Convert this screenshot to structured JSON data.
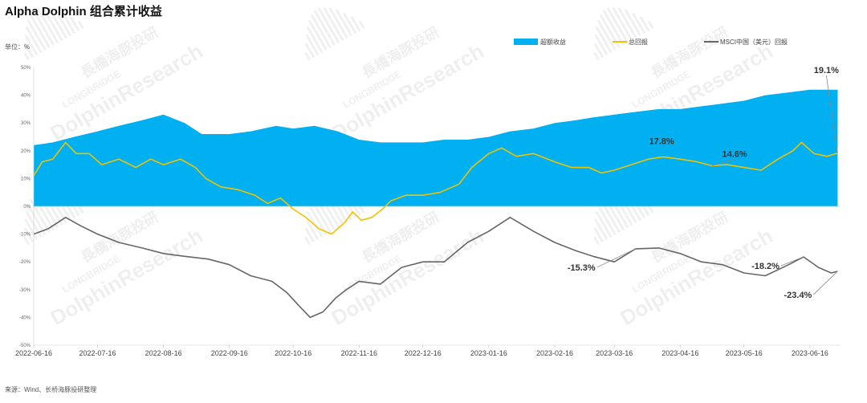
{
  "title": "Alpha Dolphin 组合累计收益",
  "unit_label": "单位：%",
  "source": "来源：Wind、长桥海豚投研整理",
  "watermark": {
    "line1": "長橋海豚投研",
    "line2": "LONGBRIDGE",
    "line3": "DolphinResearch"
  },
  "colors": {
    "excess": "#00b0f0",
    "total": "#f2c200",
    "msci": "#666666"
  },
  "chart_data": {
    "type": "area",
    "title": "Alpha Dolphin 组合累计收益",
    "ylabel": "单位：%",
    "ylim": [
      -50,
      50
    ],
    "yticks": [
      50,
      40,
      30,
      20,
      10,
      0,
      -10,
      -20,
      -30,
      -40,
      -50
    ],
    "ytick_labels": [
      "50%",
      "40%",
      "30%",
      "20%",
      "10%",
      "0%",
      "-10%",
      "-20%",
      "-30%",
      "-40%",
      "-50%"
    ],
    "x_ticks": [
      "2022-06-16",
      "2022-07-16",
      "2022-08-16",
      "2022-09-16",
      "2022-10-16",
      "2022-11-16",
      "2022-12-16",
      "2023-01-16",
      "2023-02-16",
      "2023-03-16",
      "2023-04-16",
      "2023-05-16",
      "2023-06-16"
    ],
    "x_start": "2022-06-16",
    "x_end": "2023-06-30",
    "legend_position": "top",
    "grid": false,
    "series": [
      {
        "name": "超额收益",
        "kind": "area",
        "points": [
          [
            "2022-06-16",
            22
          ],
          [
            "2022-06-25",
            23
          ],
          [
            "2022-07-05",
            25
          ],
          [
            "2022-07-16",
            27
          ],
          [
            "2022-07-26",
            29
          ],
          [
            "2022-08-06",
            31
          ],
          [
            "2022-08-16",
            33
          ],
          [
            "2022-08-26",
            30
          ],
          [
            "2022-09-03",
            26
          ],
          [
            "2022-09-16",
            26
          ],
          [
            "2022-09-26",
            27
          ],
          [
            "2022-10-08",
            29
          ],
          [
            "2022-10-16",
            28
          ],
          [
            "2022-10-26",
            29
          ],
          [
            "2022-11-06",
            27
          ],
          [
            "2022-11-16",
            24
          ],
          [
            "2022-11-26",
            23
          ],
          [
            "2022-12-06",
            23
          ],
          [
            "2022-12-16",
            23
          ],
          [
            "2022-12-26",
            24
          ],
          [
            "2023-01-06",
            24
          ],
          [
            "2023-01-16",
            25
          ],
          [
            "2023-01-26",
            27
          ],
          [
            "2023-02-06",
            28
          ],
          [
            "2023-02-16",
            30
          ],
          [
            "2023-02-26",
            31
          ],
          [
            "2023-03-06",
            32
          ],
          [
            "2023-03-16",
            33
          ],
          [
            "2023-03-26",
            34
          ],
          [
            "2023-04-06",
            35
          ],
          [
            "2023-04-16",
            35
          ],
          [
            "2023-04-26",
            36
          ],
          [
            "2023-05-06",
            37
          ],
          [
            "2023-05-16",
            38
          ],
          [
            "2023-05-26",
            40
          ],
          [
            "2023-06-06",
            41
          ],
          [
            "2023-06-16",
            42
          ],
          [
            "2023-06-26",
            42
          ],
          [
            "2023-06-29",
            42
          ]
        ]
      },
      {
        "name": "总回报",
        "kind": "line",
        "points": [
          [
            "2022-06-16",
            11
          ],
          [
            "2022-06-20",
            16
          ],
          [
            "2022-06-25",
            17
          ],
          [
            "2022-07-01",
            23
          ],
          [
            "2022-07-06",
            19
          ],
          [
            "2022-07-12",
            19
          ],
          [
            "2022-07-18",
            15
          ],
          [
            "2022-07-26",
            17
          ],
          [
            "2022-08-03",
            14
          ],
          [
            "2022-08-10",
            17
          ],
          [
            "2022-08-16",
            15
          ],
          [
            "2022-08-24",
            17
          ],
          [
            "2022-08-31",
            14
          ],
          [
            "2022-09-05",
            10
          ],
          [
            "2022-09-12",
            7
          ],
          [
            "2022-09-20",
            6
          ],
          [
            "2022-09-28",
            4
          ],
          [
            "2022-10-04",
            1
          ],
          [
            "2022-10-10",
            3
          ],
          [
            "2022-10-16",
            -1
          ],
          [
            "2022-10-22",
            -4
          ],
          [
            "2022-10-28",
            -8
          ],
          [
            "2022-11-03",
            -10
          ],
          [
            "2022-11-09",
            -6
          ],
          [
            "2022-11-13",
            -2
          ],
          [
            "2022-11-17",
            -5
          ],
          [
            "2022-11-22",
            -4
          ],
          [
            "2022-11-27",
            -1
          ],
          [
            "2022-12-01",
            2
          ],
          [
            "2022-12-08",
            4
          ],
          [
            "2022-12-16",
            4
          ],
          [
            "2022-12-24",
            5
          ],
          [
            "2023-01-02",
            8
          ],
          [
            "2023-01-08",
            14
          ],
          [
            "2023-01-16",
            19
          ],
          [
            "2023-01-22",
            21
          ],
          [
            "2023-01-29",
            18
          ],
          [
            "2023-02-06",
            19
          ],
          [
            "2023-02-16",
            16
          ],
          [
            "2023-02-24",
            14
          ],
          [
            "2023-03-04",
            14
          ],
          [
            "2023-03-10",
            12
          ],
          [
            "2023-03-16",
            13
          ],
          [
            "2023-03-24",
            15
          ],
          [
            "2023-04-01",
            17
          ],
          [
            "2023-04-08",
            17.8
          ],
          [
            "2023-04-16",
            17
          ],
          [
            "2023-04-24",
            16
          ],
          [
            "2023-05-01",
            14.6
          ],
          [
            "2023-05-08",
            15
          ],
          [
            "2023-05-16",
            14
          ],
          [
            "2023-05-24",
            13
          ],
          [
            "2023-06-01",
            17
          ],
          [
            "2023-06-08",
            20
          ],
          [
            "2023-06-12",
            23
          ],
          [
            "2023-06-18",
            19
          ],
          [
            "2023-06-24",
            18
          ],
          [
            "2023-06-29",
            19.1
          ]
        ]
      },
      {
        "name": "MSCI中国（美元）回报",
        "kind": "line",
        "points": [
          [
            "2022-06-16",
            -10
          ],
          [
            "2022-06-23",
            -8
          ],
          [
            "2022-07-01",
            -4
          ],
          [
            "2022-07-08",
            -7
          ],
          [
            "2022-07-16",
            -10
          ],
          [
            "2022-07-26",
            -13
          ],
          [
            "2022-08-06",
            -15
          ],
          [
            "2022-08-16",
            -17
          ],
          [
            "2022-08-26",
            -18
          ],
          [
            "2022-09-06",
            -19
          ],
          [
            "2022-09-16",
            -21
          ],
          [
            "2022-09-26",
            -25
          ],
          [
            "2022-10-06",
            -27
          ],
          [
            "2022-10-13",
            -31
          ],
          [
            "2022-10-19",
            -36
          ],
          [
            "2022-10-24",
            -40
          ],
          [
            "2022-10-30",
            -38
          ],
          [
            "2022-11-05",
            -33
          ],
          [
            "2022-11-10",
            -30
          ],
          [
            "2022-11-16",
            -27
          ],
          [
            "2022-11-26",
            -28
          ],
          [
            "2022-12-06",
            -22
          ],
          [
            "2022-12-16",
            -20
          ],
          [
            "2022-12-26",
            -20
          ],
          [
            "2023-01-06",
            -13
          ],
          [
            "2023-01-16",
            -9
          ],
          [
            "2023-01-26",
            -4
          ],
          [
            "2023-02-06",
            -9
          ],
          [
            "2023-02-16",
            -13
          ],
          [
            "2023-02-26",
            -16
          ],
          [
            "2023-03-06",
            -18
          ],
          [
            "2023-03-16",
            -20
          ],
          [
            "2023-03-26",
            -15.3
          ],
          [
            "2023-04-06",
            -15
          ],
          [
            "2023-04-16",
            -17
          ],
          [
            "2023-04-26",
            -20
          ],
          [
            "2023-05-06",
            -21
          ],
          [
            "2023-05-16",
            -24
          ],
          [
            "2023-05-26",
            -25
          ],
          [
            "2023-06-06",
            -21
          ],
          [
            "2023-06-13",
            -18.2
          ],
          [
            "2023-06-20",
            -22
          ],
          [
            "2023-06-26",
            -24
          ],
          [
            "2023-06-29",
            -23.4
          ]
        ]
      }
    ],
    "annotations": [
      {
        "text": "19.1%",
        "x": "2023-06-29",
        "y": 19.1
      },
      {
        "text": "17.8%",
        "x": "2023-04-08",
        "y": 17.8
      },
      {
        "text": "14.6%",
        "x": "2023-05-01",
        "y": 14.6
      },
      {
        "text": "-15.3%",
        "x": "2023-03-26",
        "y": -15.3
      },
      {
        "text": "-18.2%",
        "x": "2023-06-13",
        "y": -18.2
      },
      {
        "text": "-23.4%",
        "x": "2023-06-29",
        "y": -23.4
      }
    ]
  }
}
